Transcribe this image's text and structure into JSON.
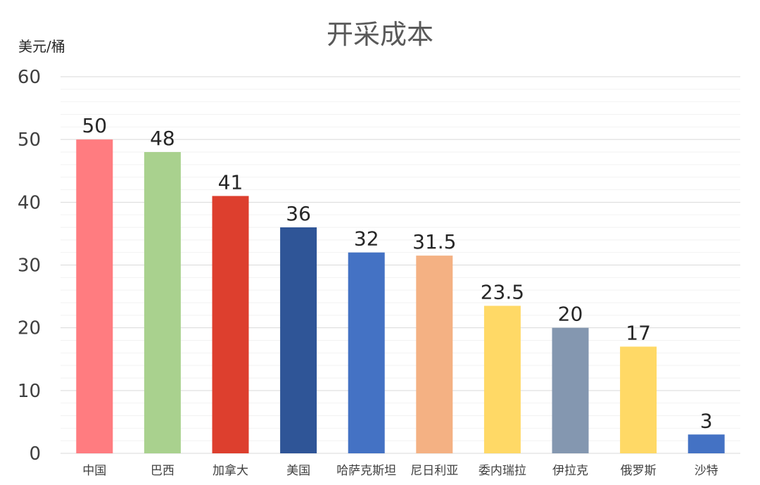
{
  "chart_data": {
    "type": "bar",
    "title": "开采成本",
    "ylabel": "美元/桶",
    "xlabel": "",
    "ylim": [
      0,
      60
    ],
    "yticks": [
      0,
      10,
      20,
      30,
      40,
      50,
      60
    ],
    "grid": true,
    "categories": [
      "中国",
      "巴西",
      "加拿大",
      "美国",
      "哈萨克斯坦",
      "尼日利亚",
      "委内瑞拉",
      "伊拉克",
      "俄罗斯",
      "沙特"
    ],
    "values": [
      50,
      48,
      41,
      36,
      32,
      31.5,
      23.5,
      20,
      17,
      3
    ],
    "value_labels": [
      "50",
      "48",
      "41",
      "36",
      "32",
      "31.5",
      "23.5",
      "20",
      "17",
      "3"
    ],
    "bar_colors": [
      "#FF7C80",
      "#A9D18E",
      "#DD3F2E",
      "#2F5597",
      "#4472C4",
      "#F4B183",
      "#FFD966",
      "#8497B0",
      "#FFD966",
      "#4472C4"
    ]
  }
}
